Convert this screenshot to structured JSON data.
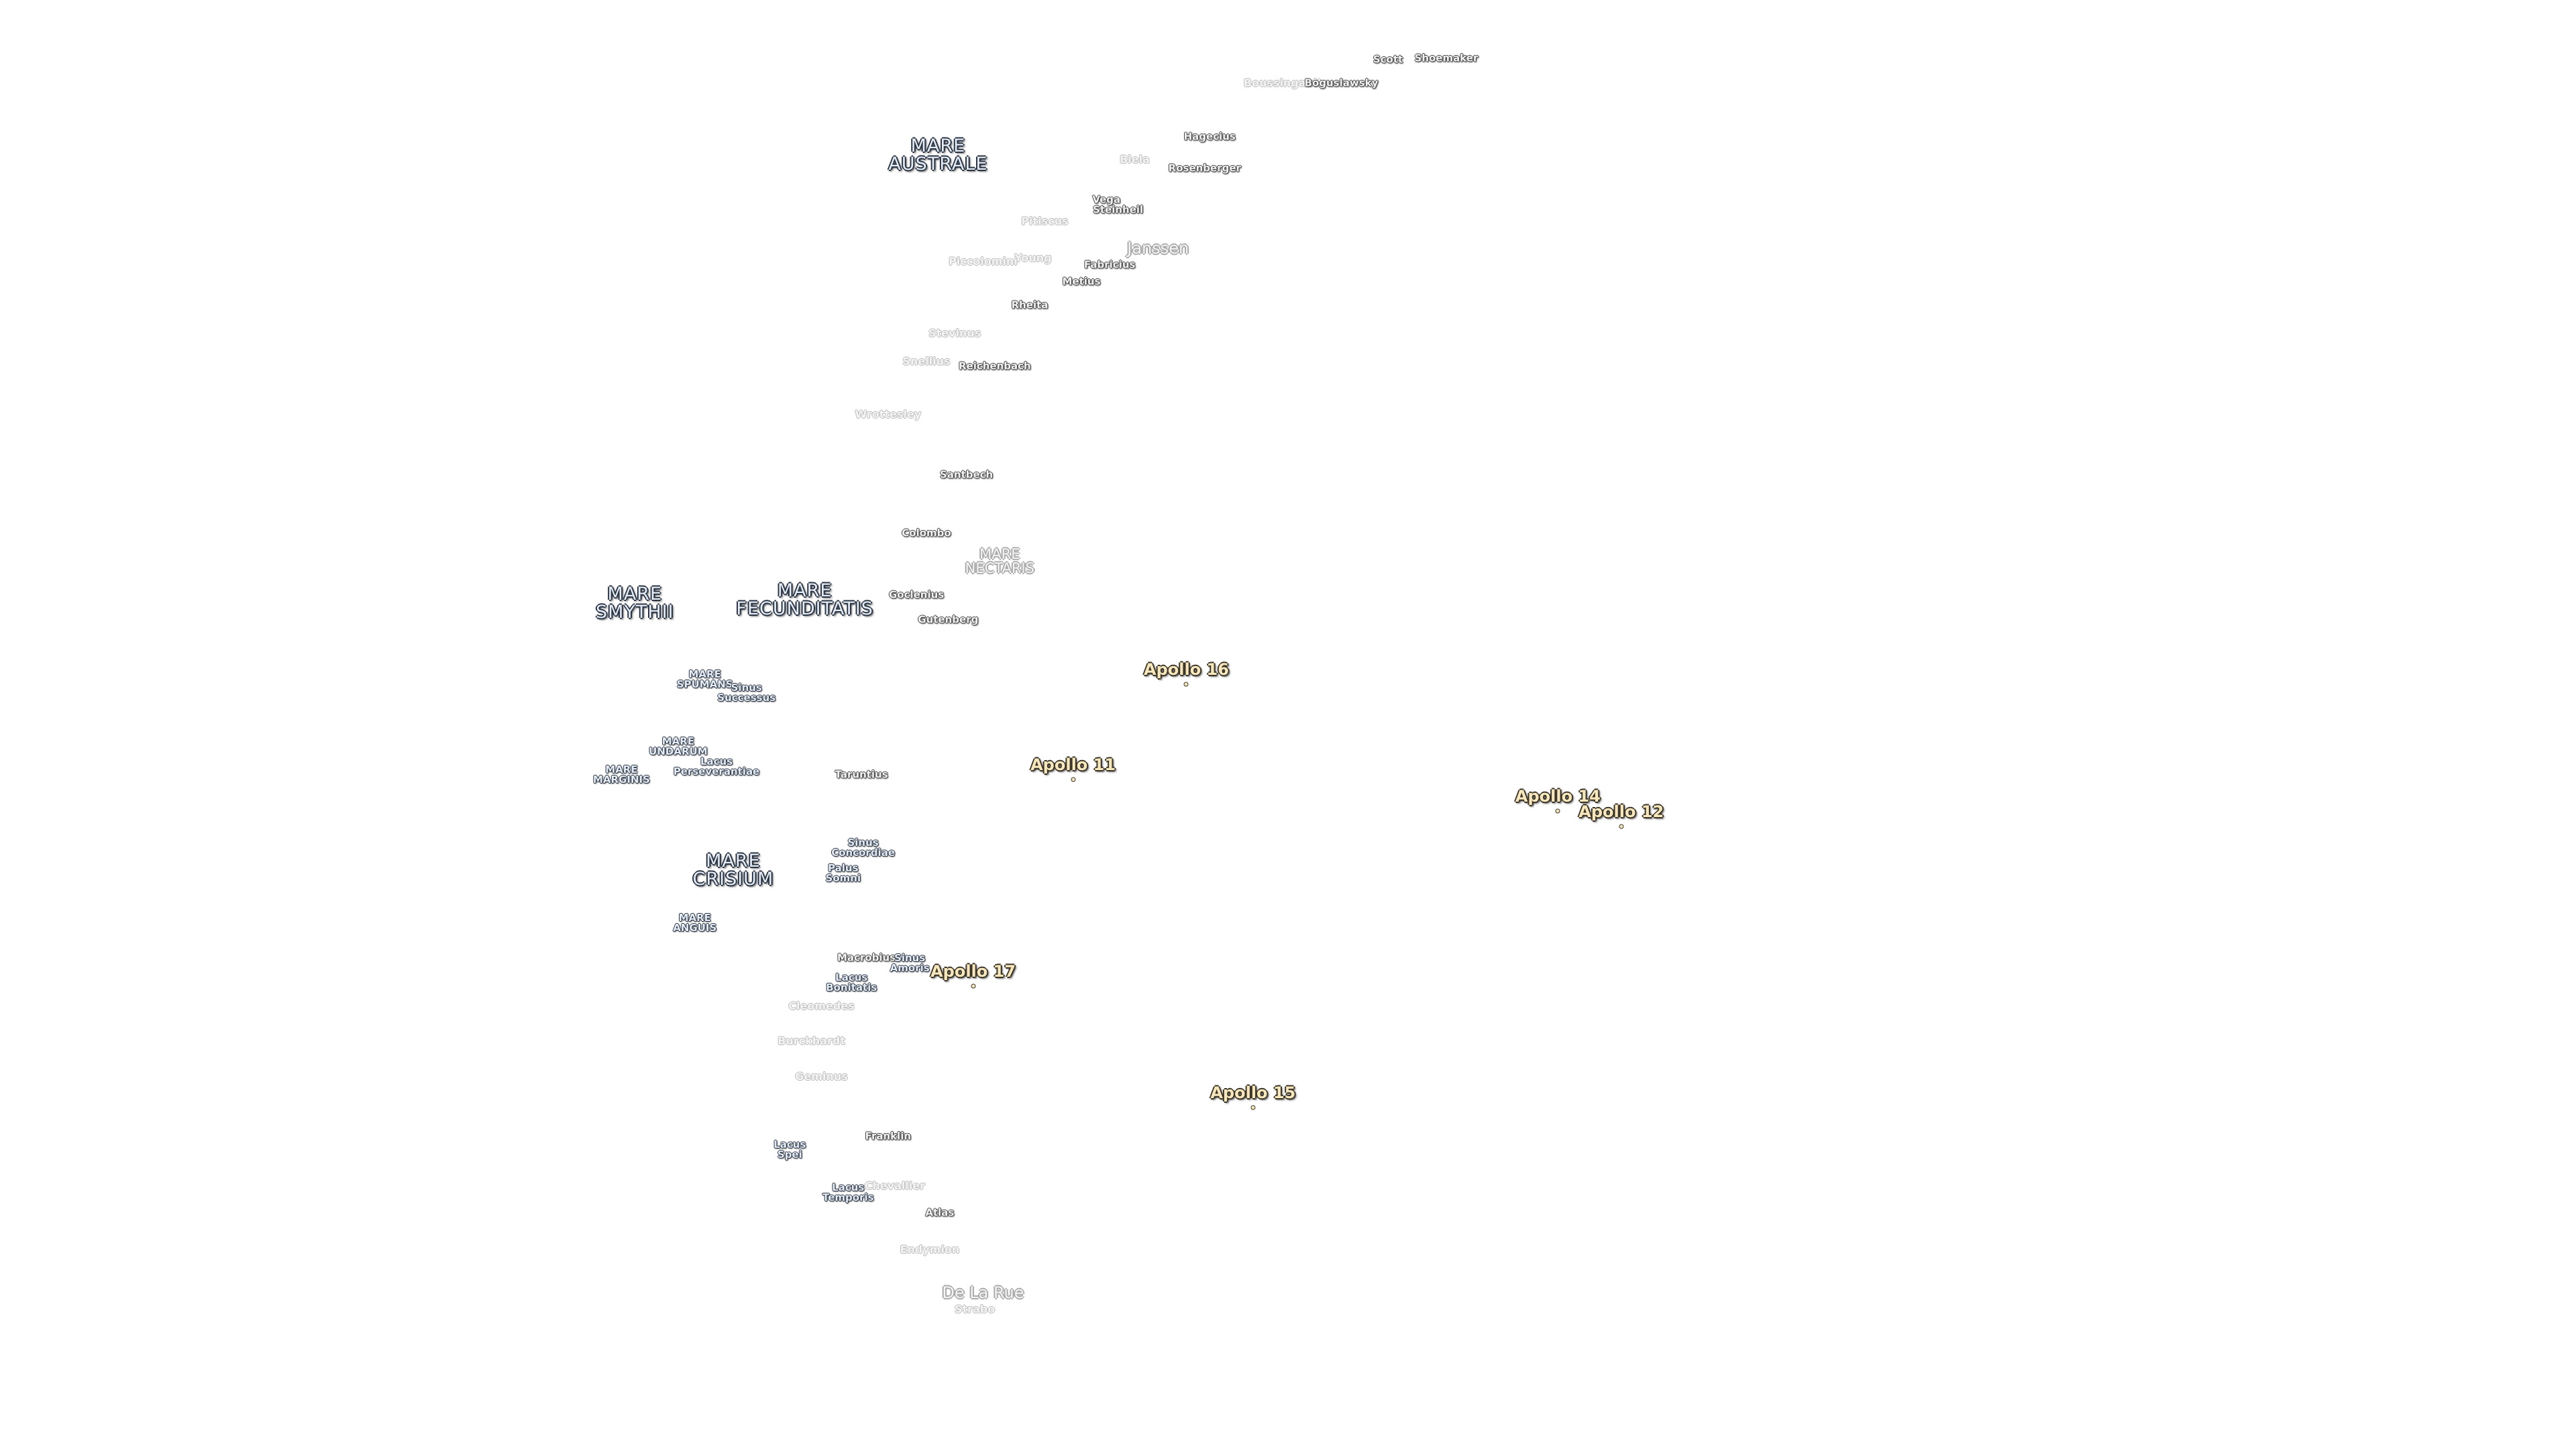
{
  "labels": [
    {
      "text": "Scott",
      "kind": "crater"
    },
    {
      "text": "Shoemaker",
      "kind": "crater"
    },
    {
      "text": "Boussingault",
      "kind": "faded"
    },
    {
      "text": "Boguslawsky",
      "kind": "crater"
    },
    {
      "text": "MARE\nAUSTRALE",
      "kind": "mare"
    },
    {
      "text": "Hagecius",
      "kind": "crater"
    },
    {
      "text": "Biela",
      "kind": "faded"
    },
    {
      "text": "Rosenberger",
      "kind": "crater"
    },
    {
      "text": "Vega",
      "kind": "crater"
    },
    {
      "text": "Steinheil",
      "kind": "crater"
    },
    {
      "text": "Pitiscus",
      "kind": "faded"
    },
    {
      "text": "Piccolomini",
      "kind": "faded"
    },
    {
      "text": "Young",
      "kind": "faded"
    },
    {
      "text": "Janssen",
      "kind": "faded-large"
    },
    {
      "text": "Fabricius",
      "kind": "crater"
    },
    {
      "text": "Metius",
      "kind": "crater"
    },
    {
      "text": "Rheita",
      "kind": "crater"
    },
    {
      "text": "Stevinus",
      "kind": "faded"
    },
    {
      "text": "Snellius",
      "kind": "faded"
    },
    {
      "text": "Reichenbach",
      "kind": "crater"
    },
    {
      "text": "Wrottesley",
      "kind": "faded"
    },
    {
      "text": "Santbech",
      "kind": "crater"
    },
    {
      "text": "Colombo",
      "kind": "crater"
    },
    {
      "text": "MARE\nNECTARIS",
      "kind": "mare-faded"
    },
    {
      "text": "MARE\nSMYTHII",
      "kind": "mare"
    },
    {
      "text": "MARE\nFECUNDITATIS",
      "kind": "mare"
    },
    {
      "text": "Goclenius",
      "kind": "crater"
    },
    {
      "text": "Gutenberg",
      "kind": "crater"
    },
    {
      "text": "Apollo 16",
      "kind": "apollo"
    },
    {
      "text": "MARE\nSPUMANS",
      "kind": "mare-small"
    },
    {
      "text": "Sinus\nSuccessus",
      "kind": "mare-small"
    },
    {
      "text": "MARE\nUNDARUM",
      "kind": "mare-small"
    },
    {
      "text": "Lacus\nPerseverantiae",
      "kind": "mare-small"
    },
    {
      "text": "MARE\nMARGINIS",
      "kind": "mare-small"
    },
    {
      "text": "Taruntius",
      "kind": "crater"
    },
    {
      "text": "Apollo 11",
      "kind": "apollo"
    },
    {
      "text": "Apollo 14",
      "kind": "apollo"
    },
    {
      "text": "Apollo 12",
      "kind": "apollo"
    },
    {
      "text": "Sinus\nConcordiae",
      "kind": "mare-small"
    },
    {
      "text": "Palus\nSomni",
      "kind": "mare-small"
    },
    {
      "text": "MARE\nCRISIUM",
      "kind": "mare"
    },
    {
      "text": "MARE\nANGUIS",
      "kind": "mare-small"
    },
    {
      "text": "Macrobius",
      "kind": "crater"
    },
    {
      "text": "Sinus\nAmoris",
      "kind": "mare-small"
    },
    {
      "text": "Lacus\nBonitatis",
      "kind": "mare-small"
    },
    {
      "text": "Apollo 17",
      "kind": "apollo"
    },
    {
      "text": "Cleomedes",
      "kind": "faded"
    },
    {
      "text": "Burckhardt",
      "kind": "faded"
    },
    {
      "text": "Geminus",
      "kind": "faded"
    },
    {
      "text": "Apollo 15",
      "kind": "apollo"
    },
    {
      "text": "Franklin",
      "kind": "crater"
    },
    {
      "text": "Lacus\nSpei",
      "kind": "mare-small"
    },
    {
      "text": "Chevallier",
      "kind": "faded"
    },
    {
      "text": "Lacus\nTemporis",
      "kind": "mare-small"
    },
    {
      "text": "Atlas",
      "kind": "crater"
    },
    {
      "text": "Endymion",
      "kind": "faded"
    },
    {
      "text": "De La Rue",
      "kind": "faded-large"
    },
    {
      "text": "Strabo",
      "kind": "faded"
    }
  ]
}
